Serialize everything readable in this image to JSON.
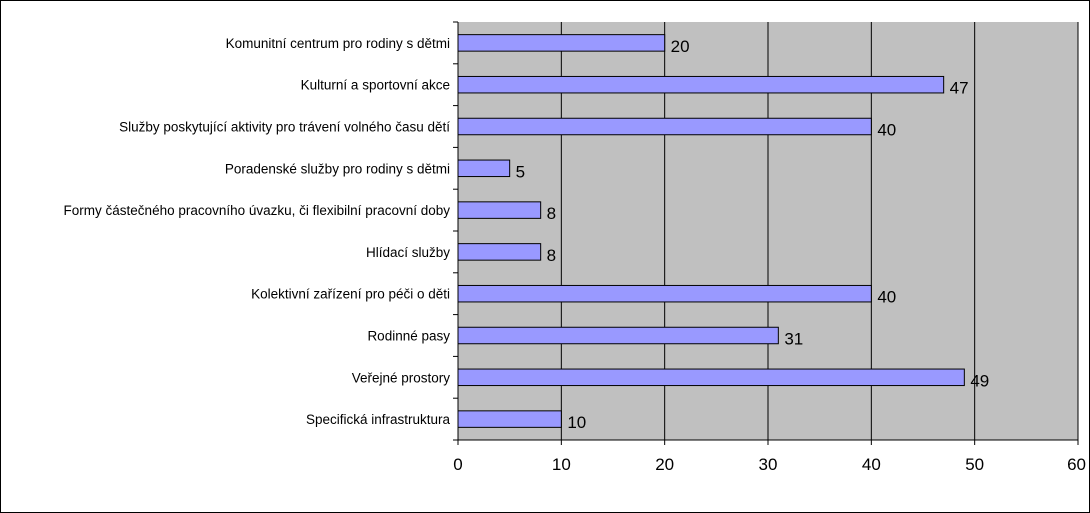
{
  "chart_data": {
    "type": "bar",
    "orientation": "horizontal",
    "title": "",
    "xlabel": "",
    "ylabel": "",
    "categories": [
      "Komunitní centrum pro rodiny s dětmi",
      "Kulturní a sportovní akce",
      "Služby poskytující aktivity pro trávení volného času dětí",
      "Poradenské služby pro rodiny s dětmi",
      "Formy částečného pracovního úvazku, či flexibilní pracovní doby",
      "Hlídací služby",
      "Kolektivní zařízení pro péči o děti",
      "Rodinné pasy",
      "Veřejné prostory",
      "Specifická infrastruktura"
    ],
    "values": [
      20,
      47,
      40,
      5,
      8,
      8,
      40,
      31,
      49,
      10
    ],
    "xlim": [
      0,
      60
    ],
    "x_ticks": [
      "0",
      "10",
      "20",
      "30",
      "40",
      "50",
      "60"
    ],
    "grid": true,
    "legend": "none",
    "colors": {
      "bar_fill": "#9999ff",
      "bar_stroke": "#000000",
      "plot_background": "#c0c0c0",
      "page_background": "#ffffff",
      "gridline": "#000000"
    }
  }
}
